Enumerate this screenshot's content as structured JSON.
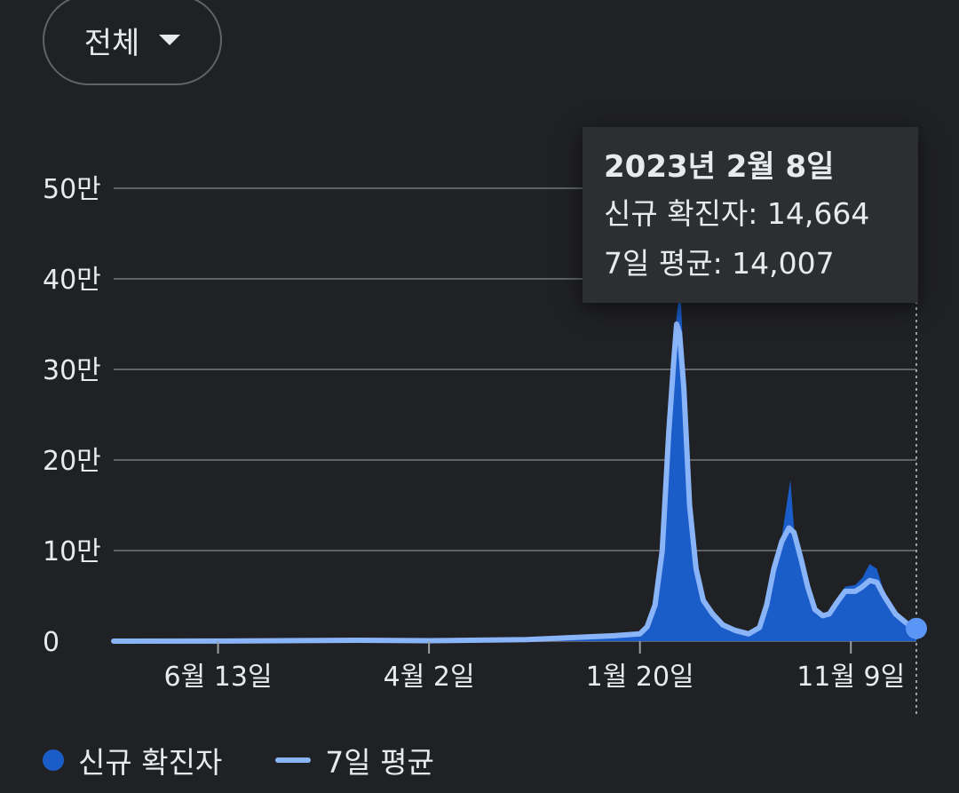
{
  "filter": {
    "label": "전체"
  },
  "chart_data": {
    "type": "area",
    "ylim": [
      0,
      500000
    ],
    "y_ticks": [
      {
        "value": 0,
        "label": "0"
      },
      {
        "value": 100000,
        "label": "10만"
      },
      {
        "value": 200000,
        "label": "20만"
      },
      {
        "value": 300000,
        "label": "30만"
      },
      {
        "value": 400000,
        "label": "40만"
      },
      {
        "value": 500000,
        "label": "50만"
      }
    ],
    "x_ticks": [
      {
        "date": "2020-06-13",
        "label": "6월 13일"
      },
      {
        "date": "2021-04-02",
        "label": "4월 2일"
      },
      {
        "date": "2022-01-20",
        "label": "1월 20일"
      },
      {
        "date": "2022-11-09",
        "label": "11월 9일"
      }
    ],
    "grid": true,
    "legend": {
      "placement": "bottom-left",
      "items": [
        "신규 확진자",
        "7일 평균"
      ]
    },
    "colors": {
      "bars": "#1a5cc8",
      "average": "#8ab4f8",
      "marker": "#5b95f5"
    },
    "series": [
      {
        "name": "7일 평균",
        "points": [
          [
            "2020-01-20",
            0
          ],
          [
            "2020-06-13",
            100
          ],
          [
            "2020-12-25",
            1000
          ],
          [
            "2021-04-02",
            500
          ],
          [
            "2021-08-15",
            1700
          ],
          [
            "2021-12-15",
            6000
          ],
          [
            "2022-01-20",
            8000
          ],
          [
            "2022-01-30",
            16000
          ],
          [
            "2022-02-10",
            40000
          ],
          [
            "2022-02-20",
            100000
          ],
          [
            "2022-03-01",
            230000
          ],
          [
            "2022-03-08",
            310000
          ],
          [
            "2022-03-12",
            350000
          ],
          [
            "2022-03-16",
            340000
          ],
          [
            "2022-03-22",
            280000
          ],
          [
            "2022-03-30",
            150000
          ],
          [
            "2022-04-08",
            80000
          ],
          [
            "2022-04-18",
            45000
          ],
          [
            "2022-05-01",
            30000
          ],
          [
            "2022-05-15",
            18000
          ],
          [
            "2022-06-01",
            12000
          ],
          [
            "2022-06-20",
            8000
          ],
          [
            "2022-07-05",
            15000
          ],
          [
            "2022-07-15",
            40000
          ],
          [
            "2022-07-25",
            80000
          ],
          [
            "2022-08-05",
            110000
          ],
          [
            "2022-08-15",
            125000
          ],
          [
            "2022-08-22",
            120000
          ],
          [
            "2022-09-01",
            90000
          ],
          [
            "2022-09-10",
            60000
          ],
          [
            "2022-09-20",
            35000
          ],
          [
            "2022-10-01",
            28000
          ],
          [
            "2022-10-10",
            30000
          ],
          [
            "2022-10-20",
            42000
          ],
          [
            "2022-11-01",
            55000
          ],
          [
            "2022-11-15",
            55000
          ],
          [
            "2022-11-25",
            60000
          ],
          [
            "2022-12-05",
            67000
          ],
          [
            "2022-12-15",
            65000
          ],
          [
            "2022-12-25",
            50000
          ],
          [
            "2023-01-10",
            30000
          ],
          [
            "2023-01-25",
            20000
          ],
          [
            "2023-02-08",
            14007
          ]
        ]
      },
      {
        "name": "신규 확진자",
        "points": [
          [
            "2020-01-20",
            0
          ],
          [
            "2020-06-13",
            100
          ],
          [
            "2020-12-25",
            1000
          ],
          [
            "2021-04-02",
            500
          ],
          [
            "2021-08-15",
            1700
          ],
          [
            "2021-12-15",
            6000
          ],
          [
            "2022-01-20",
            8000
          ],
          [
            "2022-01-30",
            17000
          ],
          [
            "2022-02-10",
            45000
          ],
          [
            "2022-02-20",
            120000
          ],
          [
            "2022-03-01",
            250000
          ],
          [
            "2022-03-08",
            330000
          ],
          [
            "2022-03-17",
            395000
          ],
          [
            "2022-03-22",
            300000
          ],
          [
            "2022-03-30",
            140000
          ],
          [
            "2022-04-08",
            75000
          ],
          [
            "2022-04-18",
            40000
          ],
          [
            "2022-05-01",
            28000
          ],
          [
            "2022-05-15",
            17000
          ],
          [
            "2022-06-01",
            11000
          ],
          [
            "2022-06-20",
            7000
          ],
          [
            "2022-07-05",
            18000
          ],
          [
            "2022-07-15",
            45000
          ],
          [
            "2022-07-25",
            85000
          ],
          [
            "2022-08-05",
            115000
          ],
          [
            "2022-08-17",
            178000
          ],
          [
            "2022-08-22",
            125000
          ],
          [
            "2022-09-01",
            85000
          ],
          [
            "2022-09-10",
            55000
          ],
          [
            "2022-09-20",
            32000
          ],
          [
            "2022-10-01",
            26000
          ],
          [
            "2022-10-10",
            32000
          ],
          [
            "2022-10-20",
            45000
          ],
          [
            "2022-11-01",
            60000
          ],
          [
            "2022-11-15",
            62000
          ],
          [
            "2022-11-25",
            70000
          ],
          [
            "2022-12-05",
            85000
          ],
          [
            "2022-12-15",
            80000
          ],
          [
            "2022-12-25",
            55000
          ],
          [
            "2023-01-10",
            30000
          ],
          [
            "2023-01-25",
            20000
          ],
          [
            "2023-02-08",
            14664
          ]
        ]
      }
    ],
    "tooltip": {
      "date": "2023년 2월 8일",
      "new_cases_line": "신규 확진자: 14,664",
      "average_line": "7일 평균: 14,007"
    }
  }
}
